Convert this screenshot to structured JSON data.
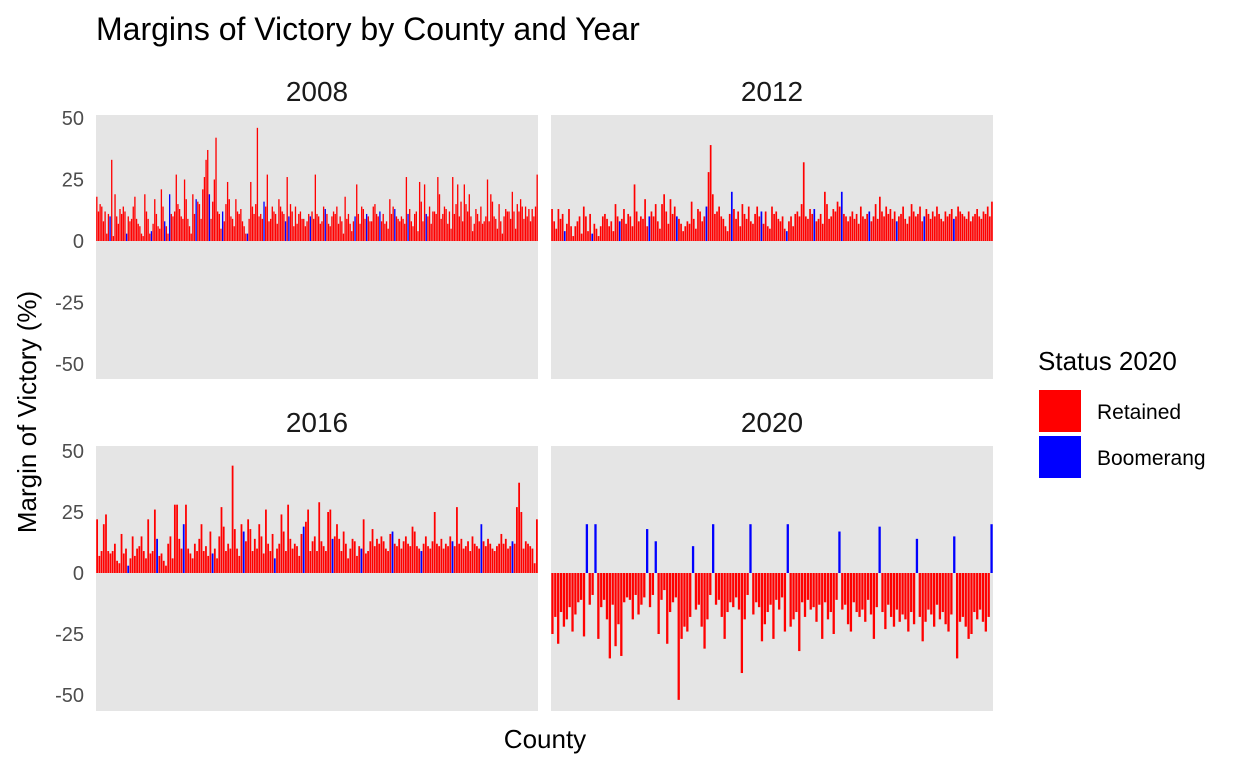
{
  "chart_data": {
    "type": "bar",
    "title": "Margins of Victory by County and Year",
    "xlabel": "County",
    "ylabel": "Margin of Victory (%)",
    "ylim": [
      -55,
      55
    ],
    "yticks": [
      50,
      25,
      0,
      -25,
      -50
    ],
    "ytick_labels": [
      "50",
      "25",
      "0",
      "-25",
      "-50"
    ],
    "grid": false,
    "legend": {
      "title": "Status 2020",
      "placement": "right",
      "entries": [
        {
          "label": "Retained",
          "color": "#ff0000"
        },
        {
          "label": "Boomerang",
          "color": "#0000ff"
        }
      ]
    },
    "colors": {
      "Retained": "#ff0000",
      "Boomerang": "#0000ff",
      "panel": "#e5e5e5"
    },
    "facets": [
      {
        "label": "2008",
        "boomerang_indices": [
          8,
          18,
          33,
          41,
          44,
          60,
          68,
          76,
          91,
          101,
          114,
          116,
          129,
          138,
          156,
          163,
          171,
          180,
          188,
          199
        ],
        "values": [
          18,
          12,
          15,
          14,
          8,
          12,
          3,
          11,
          10,
          33,
          2,
          19,
          10,
          7,
          13,
          11,
          14,
          12,
          3,
          10,
          8,
          9,
          14,
          18,
          9,
          7,
          6,
          3,
          2,
          19,
          12,
          9,
          3,
          4,
          7,
          17,
          11,
          6,
          5,
          21,
          14,
          8,
          6,
          3,
          19,
          11,
          10,
          12,
          27,
          15,
          13,
          10,
          9,
          25,
          17,
          9,
          6,
          3,
          19,
          11,
          17,
          16,
          15,
          9,
          21,
          26,
          33,
          37,
          19,
          9,
          16,
          25,
          42,
          12,
          11,
          5,
          12,
          8,
          15,
          24,
          17,
          10,
          9,
          6,
          17,
          12,
          11,
          13,
          8,
          6,
          3,
          3,
          9,
          24,
          14,
          11,
          15,
          46,
          10,
          11,
          9,
          16,
          14,
          27,
          8,
          9,
          14,
          12,
          11,
          7,
          17,
          14,
          12,
          11,
          8,
          26,
          10,
          15,
          12,
          6,
          14,
          7,
          11,
          12,
          9,
          9,
          6,
          8,
          11,
          10,
          12,
          9,
          27,
          11,
          10,
          7,
          8,
          14,
          13,
          11,
          7,
          6,
          10,
          12,
          11,
          14,
          7,
          10,
          8,
          3,
          18,
          9,
          11,
          7,
          4,
          8,
          10,
          23,
          11,
          7,
          14,
          13,
          9,
          11,
          10,
          8,
          8,
          14,
          15,
          11,
          10,
          12,
          8,
          11,
          7,
          8,
          5,
          17,
          11,
          14,
          13,
          10,
          9,
          8,
          10,
          9,
          7,
          26,
          11,
          13,
          8,
          6,
          11,
          12,
          4,
          24,
          16,
          8,
          23,
          11,
          10,
          14,
          7,
          12,
          12,
          11,
          26,
          19,
          9,
          11,
          14,
          13,
          7,
          12,
          5,
          26,
          11,
          15,
          23,
          10,
          16,
          8,
          23,
          15,
          12,
          19,
          10,
          4,
          7,
          13,
          11,
          8,
          14,
          7,
          8,
          10,
          25,
          8,
          19,
          16,
          10,
          9,
          5,
          15,
          8,
          3,
          10,
          13,
          12,
          12,
          9,
          20,
          12,
          5,
          15,
          12,
          17,
          14,
          9,
          14,
          10,
          13,
          8,
          13,
          10,
          14,
          27
        ]
      },
      {
        "label": "2012",
        "boomerang_indices": [
          6,
          19,
          32,
          46,
          59,
          73,
          85,
          99,
          111,
          124,
          137,
          150,
          163,
          176,
          190
        ],
        "values": [
          13,
          8,
          5,
          13,
          9,
          11,
          4,
          7,
          13,
          6,
          2,
          6,
          8,
          10,
          3,
          14,
          10,
          4,
          11,
          3,
          7,
          5,
          2,
          6,
          10,
          11,
          9,
          6,
          8,
          4,
          15,
          10,
          8,
          9,
          13,
          7,
          11,
          10,
          6,
          23,
          12,
          8,
          10,
          9,
          17,
          6,
          10,
          12,
          10,
          15,
          8,
          5,
          15,
          19,
          12,
          7,
          17,
          11,
          14,
          10,
          9,
          7,
          4,
          6,
          8,
          7,
          16,
          9,
          5,
          13,
          12,
          8,
          10,
          14,
          28,
          39,
          19,
          11,
          12,
          14,
          10,
          9,
          6,
          4,
          11,
          44,
          13,
          9,
          12,
          6,
          15,
          11,
          9,
          14,
          8,
          7,
          11,
          14,
          10,
          12,
          7,
          12,
          6,
          5,
          14,
          11,
          12,
          9,
          8,
          10,
          5,
          4,
          8,
          10,
          6,
          11,
          12,
          10,
          15,
          32,
          10,
          9,
          13,
          11,
          13,
          8,
          9,
          11,
          7,
          20,
          15,
          9,
          10,
          13,
          12,
          16,
          14,
          23,
          11,
          10,
          8,
          10,
          12,
          9,
          11,
          7,
          14,
          10,
          9,
          11,
          12,
          8,
          10,
          15,
          9,
          18,
          12,
          10,
          14,
          11,
          13,
          9,
          12,
          8,
          10,
          11,
          14,
          9,
          7,
          10,
          15,
          12,
          10,
          11,
          14,
          8,
          10,
          13,
          11,
          9,
          12,
          10,
          14,
          11,
          9,
          8,
          12,
          10,
          11,
          13,
          9,
          10,
          14,
          12,
          11,
          10,
          9,
          12,
          8,
          10,
          11,
          13,
          10,
          9,
          12,
          11,
          14,
          10,
          16
        ]
      },
      {
        "label": "2016",
        "boomerang_indices": [
          14,
          27,
          39,
          52,
          66,
          80,
          93,
          106,
          119,
          133,
          146,
          160,
          173,
          187
        ],
        "values": [
          22,
          7,
          9,
          20,
          24,
          9,
          8,
          9,
          12,
          5,
          4,
          16,
          8,
          10,
          3,
          6,
          15,
          7,
          10,
          11,
          15,
          9,
          6,
          22,
          8,
          9,
          26,
          14,
          7,
          8,
          5,
          3,
          12,
          15,
          6,
          28,
          28,
          14,
          10,
          27,
          28,
          10,
          8,
          6,
          12,
          9,
          14,
          20,
          9,
          11,
          7,
          17,
          8,
          10,
          6,
          15,
          27,
          19,
          9,
          12,
          10,
          44,
          18,
          10,
          7,
          20,
          17,
          13,
          22,
          18,
          9,
          14,
          10,
          20,
          15,
          8,
          26,
          12,
          9,
          16,
          6,
          10,
          12,
          24,
          17,
          9,
          28,
          14,
          10,
          12,
          11,
          7,
          16,
          19,
          21,
          26,
          9,
          13,
          15,
          9,
          29,
          13,
          11,
          9,
          25,
          26,
          14,
          15,
          20,
          14,
          9,
          17,
          12,
          6,
          10,
          14,
          13,
          7,
          11,
          10,
          22,
          8,
          9,
          13,
          18,
          11,
          14,
          12,
          15,
          13,
          10,
          9,
          16,
          17,
          12,
          11,
          14,
          10,
          13,
          15,
          12,
          11,
          19,
          17,
          11,
          10,
          9,
          12,
          15,
          11,
          10,
          13,
          25,
          12,
          11,
          14,
          10,
          12,
          11,
          15,
          13,
          11,
          27,
          12,
          14,
          10,
          11,
          13,
          9,
          15,
          12,
          11,
          10,
          23,
          13,
          11,
          14,
          12,
          10,
          9,
          11,
          12,
          16,
          12,
          14,
          10,
          11,
          13,
          12,
          27,
          37,
          25,
          10,
          13,
          12,
          11,
          10,
          4,
          22
        ]
      },
      {
        "label": "2020",
        "boomerang_indices": [
          12,
          15,
          33,
          36,
          49,
          56,
          69,
          82,
          100,
          114,
          127,
          140,
          153,
          167,
          183
        ],
        "values": [
          -25,
          -18,
          -29,
          -16,
          -22,
          -19,
          -14,
          -24,
          -17,
          -12,
          -11,
          -26,
          -21,
          -13,
          -9,
          -33,
          -27,
          -14,
          -11,
          -19,
          -35,
          -13,
          -30,
          -21,
          -34,
          -12,
          -10,
          -11,
          -19,
          -9,
          -17,
          -13,
          -10,
          -18,
          -14,
          -9,
          -13,
          -25,
          -11,
          -7,
          -29,
          -16,
          -12,
          -10,
          -52,
          -27,
          -22,
          -24,
          -18,
          -11,
          -15,
          -13,
          -22,
          -31,
          -19,
          -9,
          -28,
          -13,
          -11,
          -18,
          -27,
          -16,
          -12,
          -14,
          -10,
          -15,
          -41,
          -19,
          -9,
          -22,
          -17,
          -12,
          -14,
          -28,
          -21,
          -16,
          -13,
          -27,
          -11,
          -15,
          -10,
          -24,
          -30,
          -22,
          -19,
          -16,
          -32,
          -12,
          -18,
          -11,
          -15,
          -14,
          -20,
          -13,
          -27,
          -12,
          -19,
          -16,
          -25,
          -11,
          -17,
          -15,
          -13,
          -21,
          -24,
          -12,
          -16,
          -18,
          -15,
          -20,
          -11,
          -17,
          -27,
          -14,
          -19,
          -16,
          -23,
          -13,
          -18,
          -22,
          -15,
          -20,
          -17,
          -19,
          -24,
          -16,
          -21,
          -14,
          -18,
          -28,
          -20,
          -15,
          -17,
          -22,
          -13,
          -19,
          -16,
          -21,
          -24,
          -17,
          -15,
          -35,
          -20,
          -18,
          -22,
          -27,
          -25,
          -16,
          -19,
          -15,
          -20,
          -24,
          -18,
          -26
        ]
      }
    ]
  }
}
